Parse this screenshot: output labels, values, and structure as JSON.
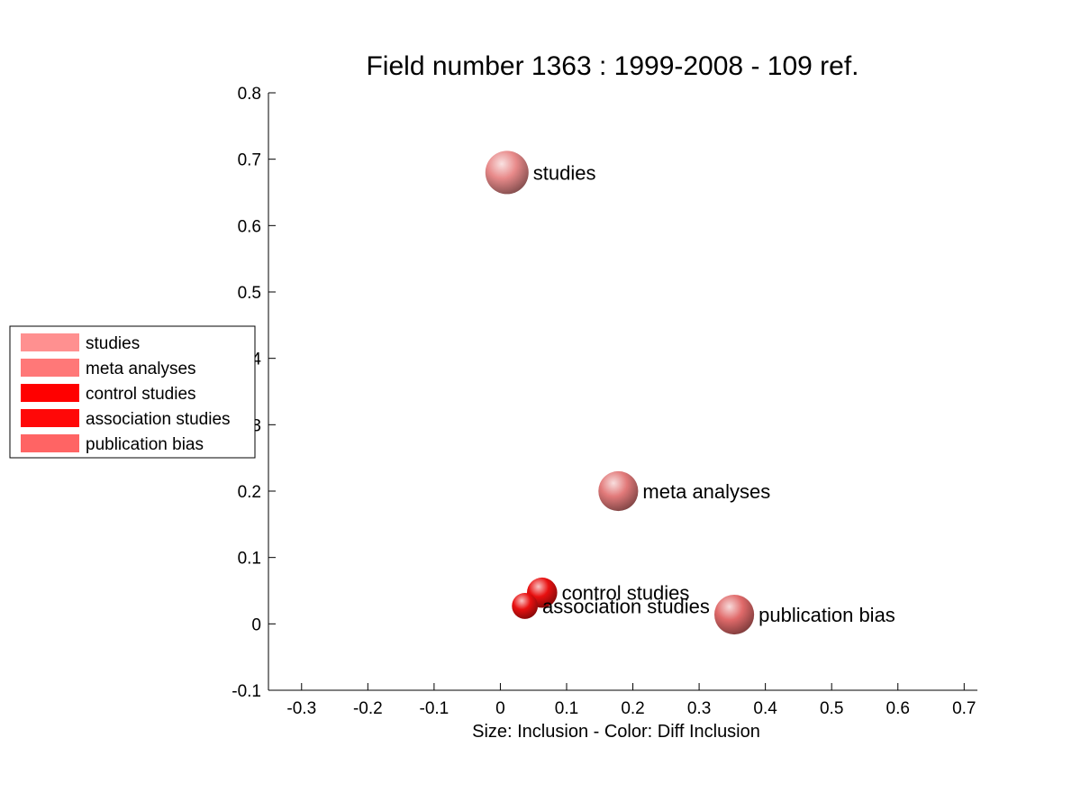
{
  "chart_data": {
    "type": "scatter",
    "title": "Field number 1363 : 1999-2008  - 109 ref.",
    "xlabel": "Size: Inclusion - Color: Diff Inclusion",
    "ylabel": "",
    "xlim": [
      -0.35,
      0.72
    ],
    "ylim": [
      -0.1,
      0.8
    ],
    "xticks": [
      -0.3,
      -0.2,
      -0.1,
      0,
      0.1,
      0.2,
      0.3,
      0.4,
      0.5,
      0.6,
      0.7
    ],
    "xtick_labels": [
      "-0.3",
      "-0.2",
      "-0.1",
      "0",
      "0.1",
      "0.2",
      "0.3",
      "0.4",
      "0.5",
      "0.6",
      "0.7"
    ],
    "yticks": [
      -0.1,
      0,
      0.1,
      0.2,
      0.3,
      0.4,
      0.5,
      0.6,
      0.7,
      0.8
    ],
    "ytick_labels": [
      "-0.1",
      "0",
      "0.1",
      "0.2",
      "0.3",
      "0.4",
      "0.5",
      "0.6",
      "0.7",
      "0.8"
    ],
    "grid": false,
    "legend_position": "left-middle",
    "points": [
      {
        "label": "studies",
        "x": 0.01,
        "y": 0.68,
        "size": 1.0,
        "color": "#e88a8a",
        "legend_color": "#ff9090"
      },
      {
        "label": "meta analyses",
        "x": 0.178,
        "y": 0.2,
        "size": 0.92,
        "color": "#e27a7a",
        "legend_color": "#ff7878"
      },
      {
        "label": "control studies",
        "x": 0.063,
        "y": 0.047,
        "size": 0.7,
        "color": "#e81010",
        "legend_color": "#ff0000"
      },
      {
        "label": "association studies",
        "x": 0.037,
        "y": 0.027,
        "size": 0.6,
        "color": "#e81010",
        "legend_color": "#ff0808"
      },
      {
        "label": "publication bias",
        "x": 0.353,
        "y": 0.014,
        "size": 0.92,
        "color": "#e06a6a",
        "legend_color": "#ff6464"
      }
    ]
  }
}
